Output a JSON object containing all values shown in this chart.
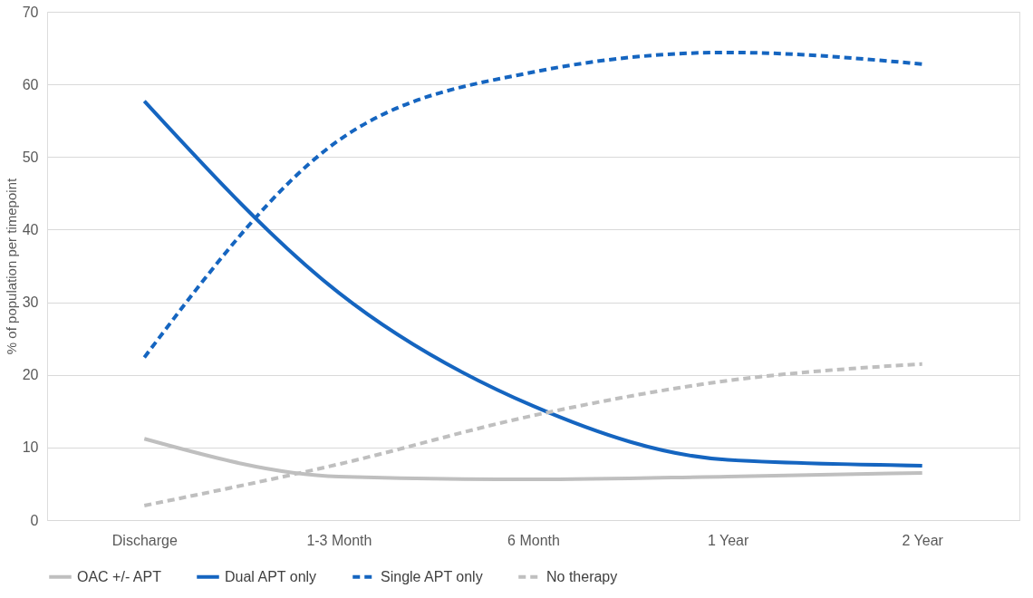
{
  "chart_data": {
    "type": "line",
    "ylabel": "% of population per timepoint",
    "categories": [
      "Discharge",
      "1-3 Month",
      "6 Month",
      "1 Year",
      "2 Year"
    ],
    "series": [
      {
        "name": "OAC +/- APT",
        "color": "#bfbfbf",
        "line_style": "solid",
        "values": [
          11.2,
          6.0,
          5.6,
          6.0,
          6.5
        ]
      },
      {
        "name": "Dual APT only",
        "color": "#1565c0",
        "line_style": "solid",
        "values": [
          57.7,
          31.3,
          15.7,
          8.3,
          7.5
        ]
      },
      {
        "name": "Single APT only",
        "color": "#1565c0",
        "line_style": "dashed",
        "values": [
          22.4,
          52.3,
          61.7,
          64.4,
          62.8
        ]
      },
      {
        "name": "No therapy",
        "color": "#bfbfbf",
        "line_style": "dashed",
        "values": [
          2.0,
          7.7,
          14.4,
          19.2,
          21.5
        ]
      }
    ],
    "ylim": [
      0,
      70
    ],
    "yticks": [
      0,
      10,
      20,
      30,
      40,
      50,
      60,
      70
    ],
    "grid": "y",
    "legend": "bottom",
    "marker": "none"
  }
}
